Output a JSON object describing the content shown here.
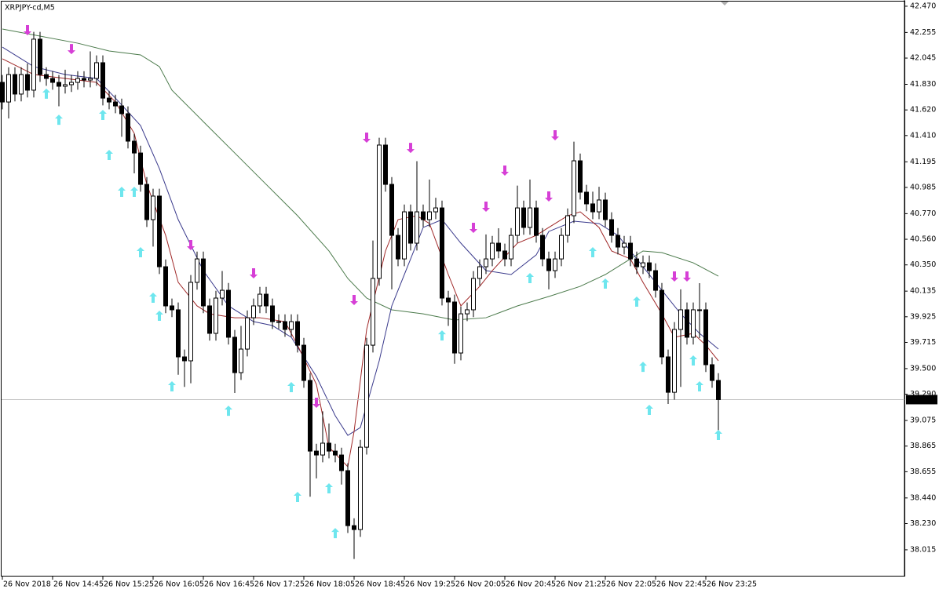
{
  "chart_data": {
    "type": "candlestick",
    "title": "XRPJPY-cd,M5",
    "categories": [
      "26 Nov 2018",
      null,
      null,
      null,
      null,
      null,
      null,
      null,
      "26 Nov 14:45",
      null,
      null,
      null,
      null,
      null,
      null,
      null,
      "26 Nov 15:25",
      null,
      null,
      null,
      null,
      null,
      null,
      null,
      "26 Nov 16:05",
      null,
      null,
      null,
      null,
      null,
      null,
      null,
      "26 Nov 16:45",
      null,
      null,
      null,
      null,
      null,
      null,
      null,
      "26 Nov 17:25",
      null,
      null,
      null,
      null,
      null,
      null,
      null,
      "26 Nov 18:05",
      null,
      null,
      null,
      null,
      null,
      null,
      null,
      "26 Nov 18:45",
      null,
      null,
      null,
      null,
      null,
      null,
      null,
      "26 Nov 19:25",
      null,
      null,
      null,
      null,
      null,
      null,
      null,
      "26 Nov 20:05",
      null,
      null,
      null,
      null,
      null,
      null,
      null,
      "26 Nov 20:45",
      null,
      null,
      null,
      null,
      null,
      null,
      null,
      "26 Nov 21:25",
      null,
      null,
      null,
      null,
      null,
      null,
      null,
      "26 Nov 22:05",
      null,
      null,
      null,
      null,
      null,
      null,
      null,
      "26 Nov 22:45",
      null,
      null,
      null,
      null,
      null,
      null,
      null,
      "26 Nov 23:25",
      null,
      null
    ],
    "open": [
      41.846,
      41.685,
      41.91,
      41.75,
      41.91,
      41.782,
      42.2,
      41.91,
      41.878,
      41.846,
      41.814,
      41.827,
      41.846,
      41.878,
      41.865,
      41.878,
      42.007,
      41.717,
      41.685,
      41.653,
      41.589,
      41.364,
      41.267,
      41.01,
      40.721,
      40.914,
      40.335,
      40.014,
      39.982,
      39.596,
      39.564,
      40.207,
      40.399,
      40.014,
      39.789,
      40.078,
      40.142,
      39.757,
      39.467,
      39.66,
      39.917,
      40.014,
      40.11,
      40.014,
      39.885,
      39.885,
      39.821,
      39.885,
      39.692,
      39.403,
      38.824,
      38.792,
      38.889,
      38.824,
      38.792,
      38.664,
      38.213,
      38.181,
      38.856,
      39.692,
      40.239,
      41.332,
      41.01,
      40.592,
      40.399,
      40.785,
      40.528,
      40.785,
      40.721,
      40.785,
      40.817,
      40.078,
      40.046,
      39.628,
      39.949,
      39.982,
      40.239,
      40.335,
      40.399,
      40.528,
      40.464,
      40.399,
      40.592,
      40.817,
      40.657,
      40.817,
      40.592,
      40.399,
      40.303,
      40.399,
      40.592,
      40.753,
      41.203,
      40.946,
      40.85,
      40.785,
      40.882,
      40.721,
      40.592,
      40.496,
      40.528,
      40.399,
      40.335,
      40.367,
      40.303,
      40.142,
      39.596,
      39.306,
      39.821,
      39.982,
      39.757,
      39.982,
      39.982,
      39.532,
      39.403
    ],
    "high": [
      41.906,
      41.97,
      41.97,
      41.97,
      42.0,
      42.26,
      42.26,
      41.97,
      41.938,
      41.906,
      41.95,
      41.906,
      41.938,
      41.938,
      42.1,
      42.067,
      42.067,
      41.777,
      41.745,
      41.713,
      41.649,
      41.424,
      41.327,
      41.07,
      40.974,
      40.974,
      40.395,
      40.074,
      40.042,
      39.656,
      40.267,
      40.459,
      40.459,
      40.074,
      40.138,
      40.3,
      40.202,
      39.817,
      39.85,
      39.977,
      40.074,
      40.17,
      40.17,
      40.074,
      39.945,
      39.945,
      39.945,
      39.945,
      39.752,
      39.463,
      38.884,
      39.15,
      39.05,
      38.884,
      38.852,
      38.724,
      38.273,
      38.916,
      39.752,
      40.55,
      41.392,
      41.392,
      41.07,
      40.652,
      40.845,
      40.845,
      41.2,
      40.845,
      41.05,
      40.9,
      40.877,
      40.138,
      40.106,
      40.009,
      40.042,
      40.299,
      40.395,
      40.6,
      40.588,
      40.65,
      40.524,
      40.652,
      41.0,
      40.877,
      41.05,
      40.877,
      40.652,
      40.459,
      40.459,
      40.652,
      40.813,
      41.36,
      41.263,
      41.006,
      40.95,
      40.99,
      40.942,
      40.781,
      40.652,
      40.588,
      40.588,
      40.459,
      40.427,
      40.427,
      40.363,
      40.202,
      39.656,
      39.881,
      40.15,
      40.042,
      40.042,
      40.2,
      40.042,
      39.592,
      39.463
    ],
    "low": [
      41.625,
      41.55,
      41.69,
      41.69,
      41.722,
      41.722,
      41.85,
      41.818,
      41.786,
      41.65,
      41.754,
      41.767,
      41.786,
      41.805,
      41.805,
      41.818,
      41.657,
      41.625,
      41.593,
      41.4,
      41.304,
      41.1,
      40.95,
      40.661,
      40.5,
      40.275,
      39.954,
      39.922,
      39.45,
      39.35,
      39.38,
      40.147,
      39.954,
      39.729,
      39.729,
      40.018,
      39.697,
      39.3,
      39.407,
      39.6,
      39.857,
      39.954,
      39.954,
      39.825,
      39.825,
      39.761,
      39.761,
      39.632,
      39.343,
      38.45,
      38.6,
      38.732,
      38.764,
      38.732,
      38.55,
      38.153,
      37.94,
      38.121,
      38.796,
      39.632,
      40.179,
      40.95,
      40.15,
      40.339,
      40.339,
      40.468,
      40.468,
      40.661,
      40.661,
      40.725,
      40.018,
      39.85,
      39.54,
      39.568,
      39.889,
      39.922,
      40.179,
      40.275,
      40.339,
      40.404,
      40.339,
      40.339,
      40.532,
      40.597,
      40.597,
      40.532,
      40.339,
      40.15,
      40.243,
      40.339,
      40.532,
      40.693,
      40.886,
      40.79,
      40.725,
      40.725,
      40.661,
      40.532,
      40.436,
      40.436,
      40.339,
      40.275,
      40.275,
      40.243,
      40.082,
      39.536,
      39.21,
      39.246,
      39.35,
      39.697,
      39.697,
      39.75,
      39.472,
      39.343,
      38.99
    ],
    "close": [
      41.685,
      41.91,
      41.75,
      41.91,
      41.782,
      42.2,
      41.91,
      41.878,
      41.846,
      41.814,
      41.827,
      41.846,
      41.878,
      41.865,
      41.878,
      42.007,
      41.717,
      41.685,
      41.653,
      41.589,
      41.364,
      41.267,
      41.01,
      40.721,
      40.914,
      40.335,
      40.014,
      39.982,
      39.596,
      39.564,
      40.207,
      40.399,
      40.014,
      39.789,
      40.078,
      40.142,
      39.757,
      39.467,
      39.66,
      39.917,
      40.014,
      40.11,
      40.014,
      39.885,
      39.885,
      39.821,
      39.885,
      39.692,
      39.403,
      38.824,
      38.792,
      38.889,
      38.824,
      38.792,
      38.664,
      38.213,
      38.181,
      38.856,
      39.692,
      40.239,
      41.332,
      41.01,
      40.592,
      40.399,
      40.785,
      40.528,
      40.785,
      40.721,
      40.785,
      40.817,
      40.078,
      40.046,
      39.628,
      39.949,
      39.982,
      40.239,
      40.335,
      40.399,
      40.528,
      40.464,
      40.399,
      40.592,
      40.817,
      40.657,
      40.817,
      40.592,
      40.399,
      40.303,
      40.399,
      40.592,
      40.753,
      41.203,
      40.946,
      40.85,
      40.785,
      40.882,
      40.721,
      40.592,
      40.496,
      40.528,
      40.399,
      40.335,
      40.367,
      40.303,
      40.142,
      39.596,
      39.306,
      39.821,
      39.982,
      39.757,
      39.982,
      39.982,
      39.532,
      39.403,
      39.246
    ],
    "series": [
      {
        "color": "#4b7a4b",
        "x": [
          0,
          12,
          17,
          22,
          25,
          27,
          32,
          37,
          42,
          47,
          52,
          55,
          58,
          62,
          67,
          72,
          77,
          82,
          87,
          92,
          96,
          100,
          102,
          105,
          110,
          114
        ],
        "values": [
          42.283,
          42.167,
          42.103,
          42.071,
          41.975,
          41.782,
          41.524,
          41.267,
          41.01,
          40.753,
          40.464,
          40.239,
          40.078,
          39.982,
          39.949,
          39.898,
          39.917,
          40.014,
          40.091,
          40.174,
          40.271,
          40.399,
          40.464,
          40.451,
          40.367,
          40.258
        ]
      },
      {
        "color": "#3a3a8c",
        "x": [
          0,
          5,
          10,
          15,
          18,
          22,
          25,
          28,
          32,
          36,
          40,
          43,
          46,
          50,
          53,
          55,
          57,
          60,
          62,
          65,
          67,
          70,
          73,
          77,
          81,
          85,
          87,
          91,
          95,
          98,
          101,
          105,
          108,
          111,
          114
        ],
        "values": [
          42.135,
          41.975,
          41.91,
          41.878,
          41.717,
          41.492,
          41.139,
          40.721,
          40.303,
          40.014,
          39.885,
          39.853,
          39.757,
          39.435,
          39.114,
          38.953,
          39.017,
          39.564,
          40.014,
          40.399,
          40.657,
          40.721,
          40.528,
          40.303,
          40.271,
          40.432,
          40.624,
          40.708,
          40.689,
          40.592,
          40.399,
          40.142,
          39.949,
          39.789,
          39.66
        ]
      },
      {
        "color": "#a02828",
        "x": [
          0,
          5,
          10,
          15,
          18,
          21,
          23,
          26,
          28,
          31,
          33,
          37,
          41,
          45,
          47,
          50,
          52,
          55,
          56,
          58,
          61,
          63,
          66,
          68,
          71,
          73,
          76,
          78,
          82,
          85,
          87,
          90,
          92,
          95,
          97,
          100,
          102,
          105,
          107,
          110,
          112,
          114
        ],
        "values": [
          42.039,
          41.91,
          41.878,
          41.846,
          41.685,
          41.428,
          41.01,
          40.592,
          40.207,
          40.014,
          39.949,
          39.917,
          39.917,
          39.885,
          39.692,
          39.371,
          38.856,
          38.696,
          38.985,
          39.821,
          40.464,
          40.721,
          40.753,
          40.689,
          40.271,
          40.014,
          40.174,
          40.303,
          40.528,
          40.592,
          40.657,
          40.753,
          40.785,
          40.657,
          40.464,
          40.399,
          40.207,
          39.949,
          39.757,
          39.789,
          39.692,
          39.564
        ]
      }
    ],
    "down_arrows": {
      "color": "#d63fd6",
      "x": [
        4,
        11,
        30,
        40,
        50,
        56,
        58,
        65,
        75,
        77,
        80,
        87,
        88,
        107,
        109
      ],
      "values": [
        42.277,
        42.122,
        40.515,
        40.284,
        39.223,
        40.065,
        41.396,
        41.312,
        40.657,
        40.83,
        41.126,
        40.914,
        41.415,
        40.258,
        40.258
      ]
    },
    "up_arrows": {
      "color": "#6ee6ee",
      "x": [
        7,
        9,
        16,
        17,
        19,
        21,
        22,
        24,
        25,
        27,
        36,
        46,
        47,
        52,
        53,
        70,
        84,
        94,
        96,
        101,
        102,
        103,
        110,
        111,
        114
      ],
      "values": [
        41.75,
        41.537,
        41.576,
        41.248,
        40.946,
        40.946,
        40.451,
        40.078,
        39.93,
        39.352,
        39.152,
        39.345,
        38.445,
        38.516,
        38.149,
        39.769,
        40.239,
        40.451,
        40.194,
        40.046,
        39.512,
        39.159,
        39.564,
        39.352,
        38.953
      ]
    },
    "current_price": 39.246,
    "ylim": [
      37.796,
      42.521
    ],
    "yticks": [
      {
        "value": 42.47,
        "label": "42.470"
      },
      {
        "value": 42.255,
        "label": "42.255"
      },
      {
        "value": 42.045,
        "label": "42.045"
      },
      {
        "value": 41.83,
        "label": "41.830"
      },
      {
        "value": 41.62,
        "label": "41.620"
      },
      {
        "value": 41.41,
        "label": "41.410"
      },
      {
        "value": 41.195,
        "label": "41.195"
      },
      {
        "value": 40.985,
        "label": "40.985"
      },
      {
        "value": 40.77,
        "label": "40.770"
      },
      {
        "value": 40.56,
        "label": "40.560"
      },
      {
        "value": 40.35,
        "label": "40.350"
      },
      {
        "value": 40.135,
        "label": "40.135"
      },
      {
        "value": 39.925,
        "label": "39.925"
      },
      {
        "value": 39.715,
        "label": "39.715"
      },
      {
        "value": 39.5,
        "label": "39.500"
      },
      {
        "value": 39.29,
        "label": "39.290"
      },
      {
        "value": 39.075,
        "label": "39.075"
      },
      {
        "value": 38.865,
        "label": "38.865"
      },
      {
        "value": 38.655,
        "label": "38.655"
      },
      {
        "value": 38.44,
        "label": "38.440"
      },
      {
        "value": 38.23,
        "label": "38.230"
      },
      {
        "value": 38.015,
        "label": "38.015"
      }
    ]
  }
}
